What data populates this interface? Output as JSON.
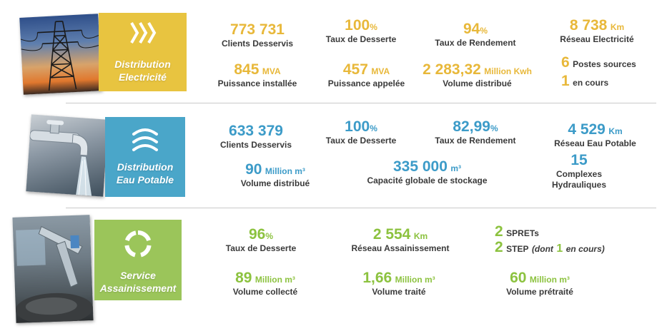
{
  "colors": {
    "electricity": "#e8c440",
    "water": "#4aa6c9",
    "sanitation": "#9bc55a"
  },
  "sections": {
    "electricity": {
      "title_line1": "Distribution",
      "title_line2": "Electricité",
      "icon": "electricity-waves-icon",
      "stats": {
        "clients": {
          "value": "773 731",
          "label": "Clients Desservis"
        },
        "desserte": {
          "value": "100",
          "unit": "%",
          "label": "Taux de Desserte"
        },
        "rendement": {
          "value": "94",
          "unit": "%",
          "label": "Taux de Rendement"
        },
        "reseau": {
          "value": "8 738",
          "unit": "Km",
          "label": "Réseau Electricité"
        },
        "puissance_installee": {
          "value": "845",
          "unit": "MVA",
          "label": "Puissance installée"
        },
        "puissance_appelee": {
          "value": "457",
          "unit": "MVA",
          "label": "Puissance appelée"
        },
        "volume": {
          "value": "2 283,32",
          "unit": "Million Kwh",
          "label": "Volume distribué"
        },
        "postes": {
          "value": "6",
          "label": "Postes sources"
        },
        "en_cours": {
          "value": "1",
          "label": "en cours"
        }
      }
    },
    "water": {
      "title_line1": "Distribution",
      "title_line2": "Eau Potable",
      "icon": "water-waves-icon",
      "stats": {
        "clients": {
          "value": "633 379",
          "label": "Clients Desservis"
        },
        "desserte": {
          "value": "100",
          "unit": "%",
          "label": "Taux de Desserte"
        },
        "rendement": {
          "value": "82,99",
          "unit": "%",
          "label": "Taux de Rendement"
        },
        "reseau": {
          "value": "4 529",
          "unit": "Km",
          "label": "Réseau Eau Potable"
        },
        "volume": {
          "value": "90",
          "unit": "Million m³",
          "label": "Volume distribué"
        },
        "stockage": {
          "value": "335 000",
          "unit": "m³",
          "label": "Capacité globale de stockage"
        },
        "complexes": {
          "value": "15",
          "label_line1": "Complexes",
          "label_line2": "Hydrauliques"
        }
      }
    },
    "sanitation": {
      "title_line1": "Service",
      "title_line2": "Assainissement",
      "icon": "recycle-ring-icon",
      "stats": {
        "desserte": {
          "value": "96",
          "unit": "%",
          "label": "Taux de Desserte"
        },
        "reseau": {
          "value": "2 554",
          "unit": "Km",
          "label": "Réseau Assainissement"
        },
        "sprets": {
          "value": "2",
          "label": "SPRETs"
        },
        "step": {
          "value": "2",
          "label": "STEP",
          "note_prefix": "(dont",
          "note_value": "1",
          "note_suffix": "en cours)"
        },
        "collecte": {
          "value": "89",
          "unit": "Million m³",
          "label": "Volume collecté"
        },
        "traite": {
          "value": "1,66",
          "unit": "Million m³",
          "label": "Volume traité"
        },
        "pretraite": {
          "value": "60",
          "unit": "Million m³",
          "label": "Volume prétraité"
        }
      }
    }
  }
}
